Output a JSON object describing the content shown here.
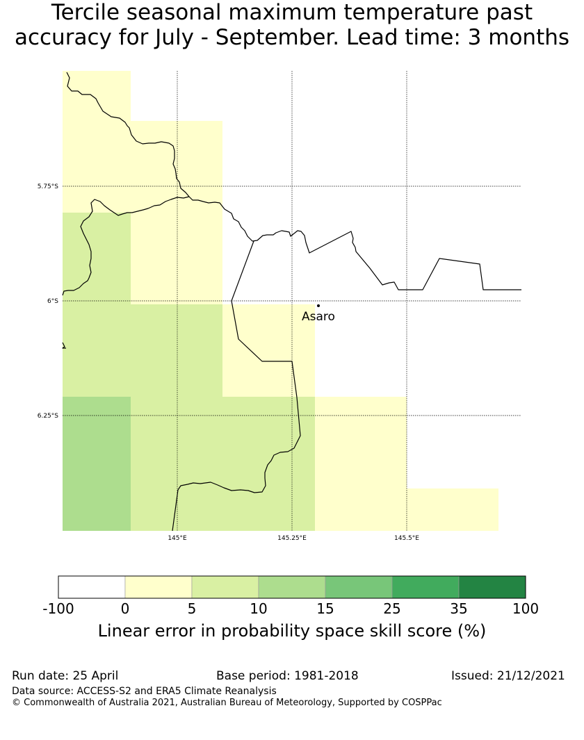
{
  "title": {
    "line1": "Tercile seasonal maximum temperature past",
    "line2": "accuracy for July - September. Lead time: 3 months"
  },
  "map": {
    "latitude_labels": [
      "5.75°S",
      "6°S",
      "6.25°S"
    ],
    "longitude_labels": [
      "145°E",
      "145.25°E",
      "145.5°E"
    ],
    "place": {
      "name": "Asaro"
    },
    "bin_colors": [
      "#ffffff",
      "#ffffcc",
      "#d9f0a3",
      "#addd8e",
      "#78c679",
      "#41ab5d",
      "#238443"
    ]
  },
  "colorbar": {
    "ticks": [
      "-100",
      "0",
      "5",
      "10",
      "15",
      "25",
      "35",
      "100"
    ],
    "colors": [
      "#ffffff",
      "#ffffcc",
      "#d9f0a3",
      "#addd8e",
      "#78c679",
      "#41ab5d",
      "#238443"
    ],
    "label": "Linear error in probability space skill score (%)"
  },
  "footer": {
    "run_date": "Run date: 25 April",
    "base_period": "Base period: 1981-2018",
    "issued": "Issued: 21/12/2021",
    "data_source": "Data source: ACCESS-S2 and ERA5 Climate Reanalysis",
    "copyright": "© Commonwealth of Australia 2021, Australian Bureau of Meteorology, Supported by COSPPac"
  }
}
